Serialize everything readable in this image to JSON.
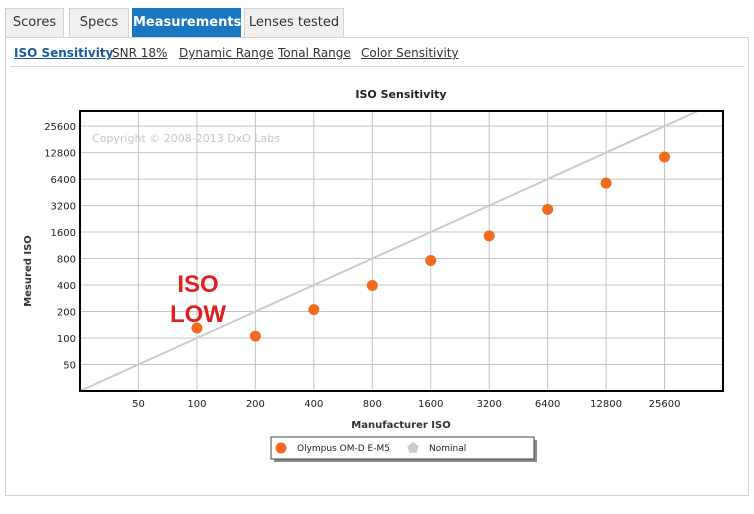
{
  "tabs": [
    {
      "label": "Scores",
      "active": false
    },
    {
      "label": "Specs",
      "active": false
    },
    {
      "label": "Measurements",
      "active": true
    },
    {
      "label": "Lenses tested",
      "active": false
    }
  ],
  "subnav": [
    {
      "label": "ISO Sensitivity",
      "active": true
    },
    {
      "label": "SNR 18%",
      "active": false
    },
    {
      "label": "Dynamic Range",
      "active": false
    },
    {
      "label": "Tonal Range",
      "active": false
    },
    {
      "label": "Color Sensitivity",
      "active": false
    }
  ],
  "chart_data": {
    "type": "scatter",
    "title": "ISO Sensitivity",
    "xlabel": "Manufacturer ISO",
    "ylabel": "Mesured ISO",
    "x_scale": "log2",
    "y_scale": "log2",
    "x_ticks": [
      50,
      100,
      200,
      400,
      800,
      1600,
      3200,
      6400,
      12800,
      25600
    ],
    "y_ticks": [
      50,
      100,
      200,
      400,
      800,
      1600,
      3200,
      6400,
      12800,
      25600
    ],
    "xlim": [
      25,
      51200
    ],
    "ylim": [
      25,
      38000
    ],
    "grid": true,
    "legend_position": "bottom-center",
    "copyright": "Copyright © 2008-2013 DxO Labs",
    "annotation": {
      "lines": [
        "ISO",
        "LOW"
      ],
      "color": "#e0201e"
    },
    "series": [
      {
        "name": "Olympus OM-D E-M5",
        "color": "#f26a21",
        "marker": "circle",
        "x": [
          100,
          200,
          400,
          800,
          1600,
          3200,
          6400,
          12800,
          25600
        ],
        "y": [
          130,
          105,
          210,
          395,
          760,
          1450,
          2900,
          5750,
          11400
        ]
      },
      {
        "name": "Nominal",
        "color": "#cccccc",
        "marker": "pentagon",
        "line": "y = x"
      }
    ]
  }
}
